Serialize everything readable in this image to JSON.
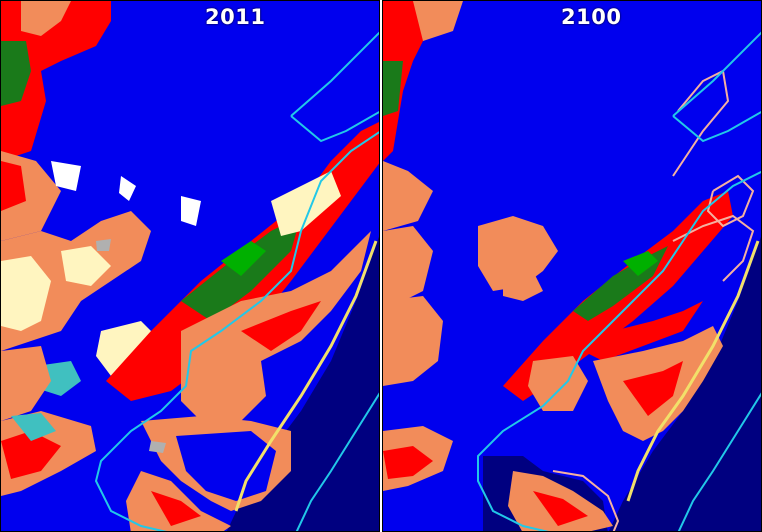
{
  "panels": [
    {
      "year_label": "2011"
    },
    {
      "year_label": "2100"
    }
  ],
  "colors": {
    "open_water": "#0000ee",
    "ocean": "#000080",
    "developed": "#ff0000",
    "dry_land": "#f28c5a",
    "upland_forest": "#1a7a1a",
    "marsh": "#00b000",
    "tidal_flat": "#fff5c0",
    "beach": "#f2e06a",
    "transitional": "#40c0c0",
    "boundary_line": "#22c8e8",
    "protected_outline": "#f4b0a0"
  }
}
